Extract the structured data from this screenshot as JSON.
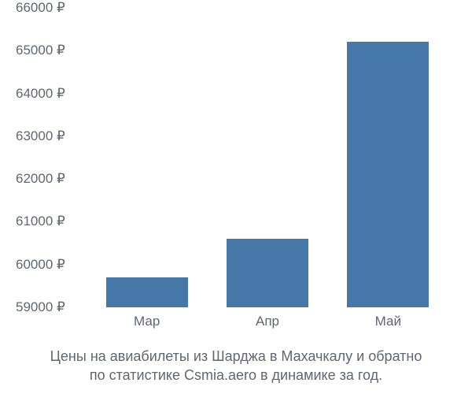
{
  "chart": {
    "type": "bar",
    "background_color": "#ffffff",
    "axis_font_color": "#606770",
    "axis_font_size": 17,
    "bar_color": "#4577a8",
    "y": {
      "min": 59000,
      "max": 66000,
      "step": 1000,
      "suffix": " ₽",
      "ticks": [
        {
          "v": 59000,
          "label": "59000 ₽"
        },
        {
          "v": 60000,
          "label": "60000 ₽"
        },
        {
          "v": 61000,
          "label": "61000 ₽"
        },
        {
          "v": 62000,
          "label": "62000 ₽"
        },
        {
          "v": 63000,
          "label": "63000 ₽"
        },
        {
          "v": 64000,
          "label": "64000 ₽"
        },
        {
          "v": 65000,
          "label": "65000 ₽"
        },
        {
          "v": 66000,
          "label": "66000 ₽"
        }
      ]
    },
    "bar_width_ratio": 0.68,
    "series": [
      {
        "label": "Мар",
        "value": 59700
      },
      {
        "label": "Апр",
        "value": 60600
      },
      {
        "label": "Май",
        "value": 65200
      }
    ]
  },
  "caption": {
    "line1": "Цены на авиабилеты из Шарджа в Махачкалу и обратно",
    "line2": "по статистике Csmia.aero в динамике за год."
  }
}
